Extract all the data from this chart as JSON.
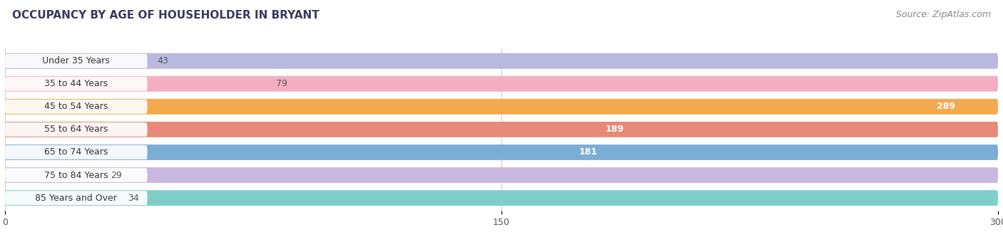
{
  "title": "OCCUPANCY BY AGE OF HOUSEHOLDER IN BRYANT",
  "source": "Source: ZipAtlas.com",
  "categories": [
    "Under 35 Years",
    "35 to 44 Years",
    "45 to 54 Years",
    "55 to 64 Years",
    "65 to 74 Years",
    "75 to 84 Years",
    "85 Years and Over"
  ],
  "values": [
    43,
    79,
    289,
    189,
    181,
    29,
    34
  ],
  "bar_colors": [
    "#b8b8e0",
    "#f5aec0",
    "#f5a94e",
    "#e8897a",
    "#7aaed6",
    "#c9b8e0",
    "#7ecfc8"
  ],
  "xlim_data": [
    0,
    300
  ],
  "xticks": [
    0,
    150,
    300
  ],
  "label_inside": [
    false,
    false,
    true,
    true,
    true,
    false,
    false
  ],
  "title_fontsize": 11,
  "source_fontsize": 9,
  "bar_label_fontsize": 9,
  "category_fontsize": 9,
  "figure_bg": "#ffffff",
  "bar_bg_color": "#e8e8e8",
  "grid_color": "#cccccc",
  "title_color": "#3a3a5c",
  "source_color": "#888888"
}
